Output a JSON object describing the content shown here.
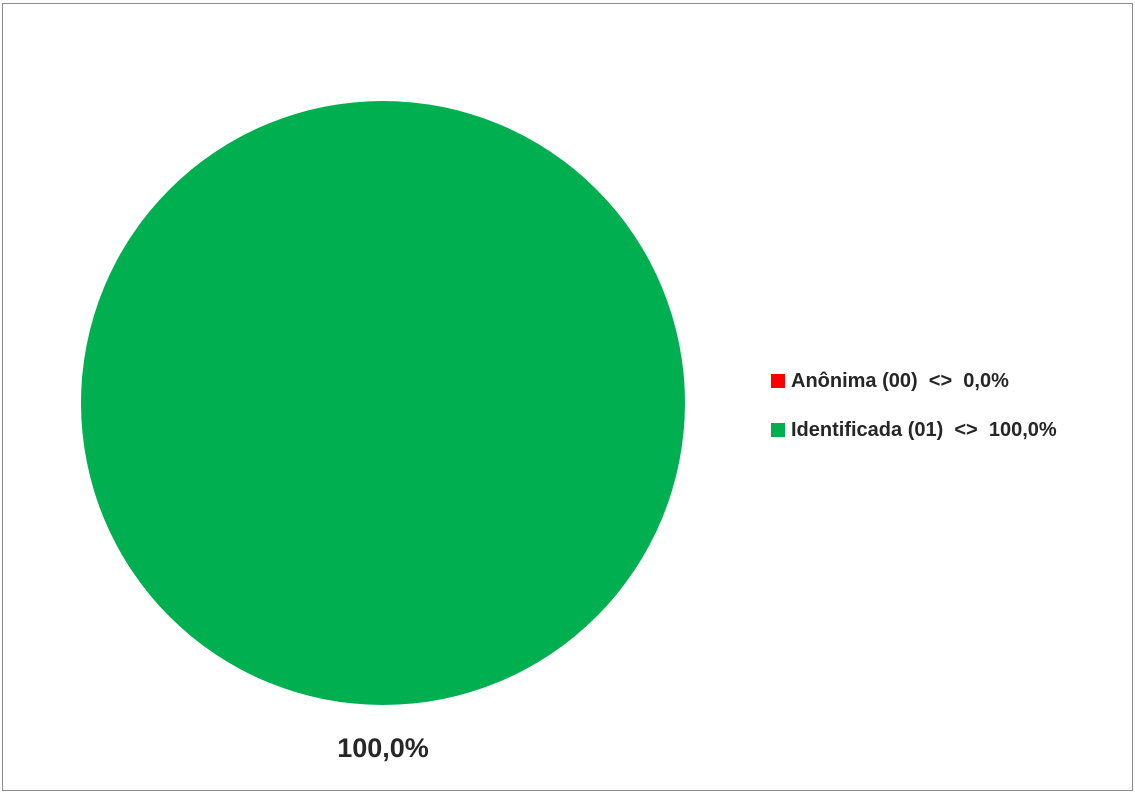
{
  "chart_data": {
    "type": "pie",
    "title": "",
    "categories": [
      "Anônima (00)",
      "Identificada (01)"
    ],
    "values": [
      0.0,
      100.0
    ],
    "colors": [
      "#ff0000",
      "#00b050"
    ],
    "data_labels": [
      "",
      "100,0%"
    ],
    "legend": {
      "position": "right",
      "entries": [
        {
          "label": "Anônima (00)  <>  0,0%",
          "color": "#ff0000"
        },
        {
          "label": "Identificada (01)  <>  100,0%",
          "color": "#00b050"
        }
      ]
    }
  }
}
